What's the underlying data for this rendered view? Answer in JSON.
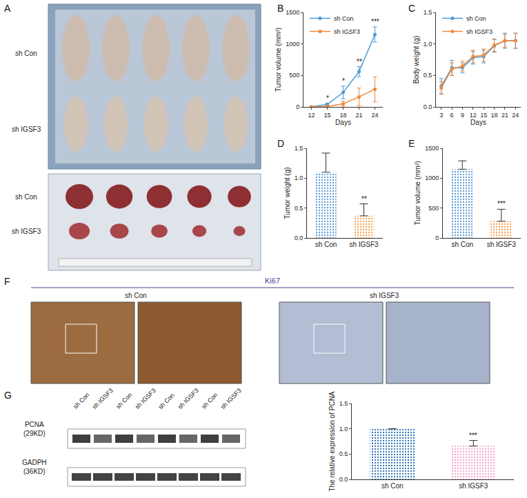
{
  "chart_data": [
    {
      "panel": "B",
      "type": "line",
      "x": [
        12,
        15,
        18,
        21,
        24
      ],
      "series": [
        {
          "name": "sh Con",
          "color": "#4a9bd6",
          "marker": "circle",
          "values": [
            0,
            40,
            230,
            560,
            1150
          ],
          "error": [
            0,
            20,
            100,
            80,
            120
          ],
          "significance": [
            null,
            "*",
            "*",
            "**",
            "***"
          ]
        },
        {
          "name": "sh IGSF3",
          "color": "#f0883a",
          "marker": "circle",
          "values": [
            0,
            8,
            50,
            160,
            280
          ],
          "error": [
            0,
            8,
            40,
            140,
            200
          ]
        }
      ],
      "x_label": "Days",
      "y_label": "Tumor volume (mm³)",
      "xlim": [
        10.5,
        25.5
      ],
      "xticks": [
        12,
        15,
        18,
        21,
        24
      ],
      "ylim": [
        0,
        1500
      ],
      "yticks": [
        0,
        500,
        1000,
        1500
      ],
      "legend": "upper left",
      "grid": false
    },
    {
      "panel": "C",
      "type": "line",
      "x": [
        3,
        6,
        9,
        12,
        15,
        18,
        21,
        24
      ],
      "series": [
        {
          "name": "sh Con",
          "color": "#4a9bd6",
          "marker": "circle",
          "values": [
            0.33,
            0.62,
            0.62,
            0.78,
            0.8,
            0.97,
            1.05,
            1.05
          ],
          "error": [
            0.12,
            0.12,
            0.08,
            0.1,
            0.1,
            0.1,
            0.12,
            0.12
          ]
        },
        {
          "name": "sh IGSF3",
          "color": "#f0883a",
          "marker": "circle",
          "values": [
            0.3,
            0.6,
            0.65,
            0.8,
            0.82,
            0.98,
            1.05,
            1.05
          ],
          "error": [
            0.1,
            0.1,
            0.08,
            0.1,
            0.1,
            0.1,
            0.1,
            0.12
          ]
        }
      ],
      "x_label": "Days",
      "y_label": "Body weight (g)",
      "xlim": [
        1.5,
        25.5
      ],
      "xticks": [
        3,
        6,
        9,
        12,
        15,
        18,
        21,
        24
      ],
      "ylim": [
        0,
        1.5
      ],
      "yticks": [
        {
          "value": 0,
          "label": "0.0"
        },
        {
          "value": 0.5,
          "label": "0.5"
        },
        {
          "value": 1,
          "label": "1.0"
        },
        {
          "value": 1.5,
          "label": "1.5"
        }
      ],
      "legend": "upper left",
      "grid": false
    },
    {
      "panel": "D",
      "type": "bar",
      "categories": [
        "sh Con",
        "sh IGSF3"
      ],
      "values": [
        1.1,
        0.37
      ],
      "error": [
        0.32,
        0.2
      ],
      "significance": [
        null,
        "**"
      ],
      "colors": [
        "#5b9bd5",
        "#f5a04a"
      ],
      "y_label": "Tumor weight (g)",
      "ylim": [
        0,
        1.5
      ],
      "yticks": [
        {
          "value": 0,
          "label": "0.0"
        },
        {
          "value": 0.5,
          "label": "0.5"
        },
        {
          "value": 1,
          "label": "1.0"
        },
        {
          "value": 1.5,
          "label": "1.5"
        }
      ],
      "grid": false
    },
    {
      "panel": "E",
      "type": "bar",
      "categories": [
        "sh Con",
        "sh IGSF3"
      ],
      "values": [
        1150,
        280
      ],
      "error": [
        140,
        200
      ],
      "significance": [
        null,
        "***"
      ],
      "colors": [
        "#5b9bd5",
        "#f5a04a"
      ],
      "y_label": "Tumor volume (mm³)",
      "ylim": [
        0,
        1500
      ],
      "yticks": [
        0,
        500,
        1000,
        1500
      ],
      "grid": false
    },
    {
      "type": "bar",
      "categories": [
        "sh Con",
        "sh IGSF3"
      ],
      "values": [
        1.0,
        0.66
      ],
      "error": [
        0,
        0.11
      ],
      "significance": [
        null,
        "***"
      ],
      "colors": [
        "#2e75b6",
        "#f4a0c8"
      ],
      "y_label": "The relative expression of PCNA",
      "ylim": [
        0,
        1.5
      ],
      "yticks": [
        {
          "value": 0,
          "label": "0.0"
        },
        {
          "value": 0.5,
          "label": "0.5"
        },
        {
          "value": 1,
          "label": "1.0"
        },
        {
          "value": 1.5,
          "label": "1.5"
        }
      ],
      "grid": false
    }
  ],
  "figure": {
    "A": {
      "panel": "A",
      "rows": [
        "sh Con",
        "sh IGSF3"
      ]
    },
    "F": {
      "panel": "F",
      "title": "Ki67",
      "columns": [
        "sh Con",
        "sh IGSF3"
      ]
    },
    "G": {
      "panel": "G",
      "lanes": [
        "sh Con",
        "sh IGSF3",
        "sh Con",
        "sh IGSF3",
        "sh Con",
        "sh IGSF3",
        "sh Con",
        "sh IGSF3"
      ],
      "bands": [
        [
          "PCNA",
          "(29KD)"
        ],
        [
          "GADPH",
          "(36KD)"
        ]
      ]
    }
  }
}
